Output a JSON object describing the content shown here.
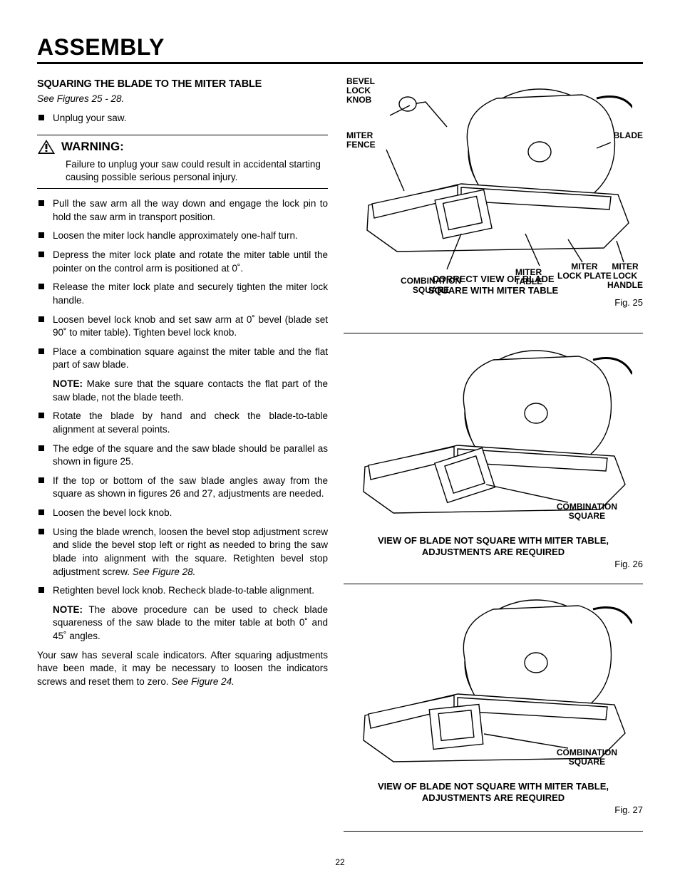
{
  "page": {
    "title": "ASSEMBLY",
    "number": "22"
  },
  "section": {
    "heading": "SQUARING THE BLADE TO THE MITER TABLE",
    "see_figures": "See Figures 25 - 28.",
    "pre_warning_items": [
      "Unplug your saw."
    ],
    "warning": {
      "label": "WARNING:",
      "body": "Failure to unplug your saw could result in accidental starting causing possible serious personal injury."
    },
    "items_block_a": [
      "Pull the saw arm all the way down and engage the lock pin to hold the saw arm in transport position.",
      "Loosen the miter lock handle approximately one-half turn.",
      "Depress the miter lock plate and rotate the miter table until the pointer on the control arm is positioned at 0˚.",
      "Release the miter lock plate and securely tighten the miter lock handle.",
      "Loosen bevel lock knob and set saw arm at 0˚ bevel (blade set 90˚ to miter table). Tighten bevel lock knob.",
      "Place a combination square against the miter table and the flat part of saw blade."
    ],
    "note_a": {
      "label": "NOTE:",
      "text": " Make sure that the square contacts the flat part of the saw blade, not the blade teeth."
    },
    "items_block_b": [
      "Rotate the blade by hand and check the blade-to-table alignment at several points.",
      "The edge of the square and the saw blade should be parallel as shown in figure 25.",
      "If the top or bottom of the saw blade angles away from the square as shown in figures 26 and 27, adjustments are needed.",
      "Loosen the bevel lock knob."
    ],
    "item_with_trailing_italic": {
      "text": "Using the blade wrench, loosen the bevel stop adjustment screw and slide the bevel stop left or right as needed to bring the saw blade into alignment with the square. Retighten bevel stop adjustment screw. ",
      "italic": "See Figure 28."
    },
    "items_block_c": [
      "Retighten bevel lock knob. Recheck blade-to-table alignment."
    ],
    "note_b": {
      "label": "NOTE:",
      "text": " The above procedure can be used to check blade squareness of the saw blade to the miter table at both 0˚ and 45˚ angles."
    },
    "closing": {
      "text": "Your saw has several scale indicators. After squaring adjustments have been made, it may be necessary to loosen the indicators screws and reset them to zero. ",
      "italic": "See Figure 24."
    }
  },
  "figures": {
    "fig25": {
      "callouts": {
        "bevel_lock_knob": "BEVEL\nLOCK\nKNOB",
        "miter_fence": "MITER\nFENCE",
        "blade": "BLADE",
        "combination_square": "COMBINATION\nSQUARE",
        "miter_table": "MITER\nTABLE",
        "miter_lock_plate": "MITER\nLOCK PLATE",
        "miter_lock_handle": "MITER\nLOCK\nHANDLE"
      },
      "caption": "CORRECT VIEW OF BLADE\nSQUARE WITH MITER TABLE",
      "number": "Fig. 25"
    },
    "fig26": {
      "callout_combo": "COMBINATION\nSQUARE",
      "caption": "VIEW OF BLADE NOT SQUARE WITH MITER TABLE,\nADJUSTMENTS ARE REQUIRED",
      "number": "Fig. 26"
    },
    "fig27": {
      "callout_combo": "COMBINATION\nSQUARE",
      "caption": "VIEW OF BLADE NOT SQUARE WITH MITER TABLE,\nADJUSTMENTS ARE REQUIRED",
      "number": "Fig. 27"
    }
  },
  "svg": {
    "stroke": "#000000",
    "fill": "#ffffff",
    "stroke_width": 1.4
  }
}
